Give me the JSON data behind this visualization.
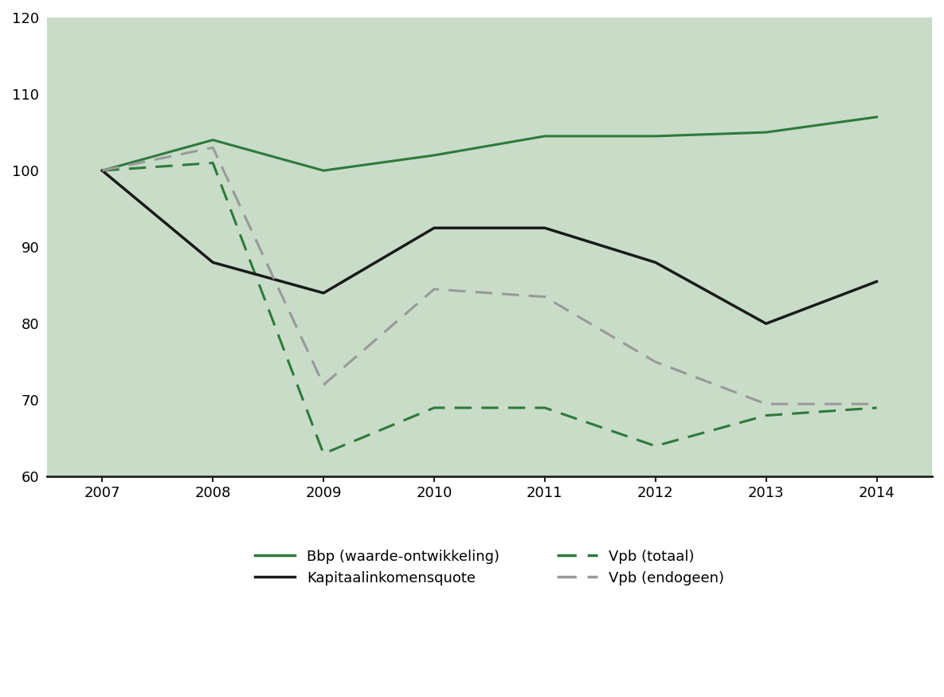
{
  "years": [
    2007,
    2008,
    2009,
    2010,
    2011,
    2012,
    2013,
    2014
  ],
  "bbp": [
    100,
    104,
    100,
    102,
    104.5,
    104.5,
    105,
    107
  ],
  "vpb_totaal": [
    100,
    101,
    63,
    69,
    69,
    64,
    68,
    69
  ],
  "kapitaalinkomensquote": [
    100,
    88,
    84,
    92.5,
    92.5,
    88,
    80,
    85.5
  ],
  "vpb_endogeen": [
    100,
    103,
    72,
    84.5,
    83.5,
    75,
    69.5,
    69.5
  ],
  "bbp_color": "#2d7a3a",
  "vpb_totaal_color": "#2d7a3a",
  "kapitaalinkomensquote_color": "#1a1a1a",
  "vpb_endogeen_color": "#999999",
  "plot_bg_color": "#c8dcc8",
  "fig_bg_color": "#ffffff",
  "ylim": [
    60,
    120
  ],
  "yticks": [
    60,
    70,
    80,
    90,
    100,
    110,
    120
  ],
  "xticks": [
    2007,
    2008,
    2009,
    2010,
    2011,
    2012,
    2013,
    2014
  ],
  "legend_labels": [
    "Bbp (waarde-ontwikkeling)",
    "Vpb (totaal)",
    "Kapitaalinkomensquote",
    "Vpb (endogeen)"
  ],
  "linewidth": 2.2,
  "tick_fontsize": 13,
  "legend_fontsize": 13
}
